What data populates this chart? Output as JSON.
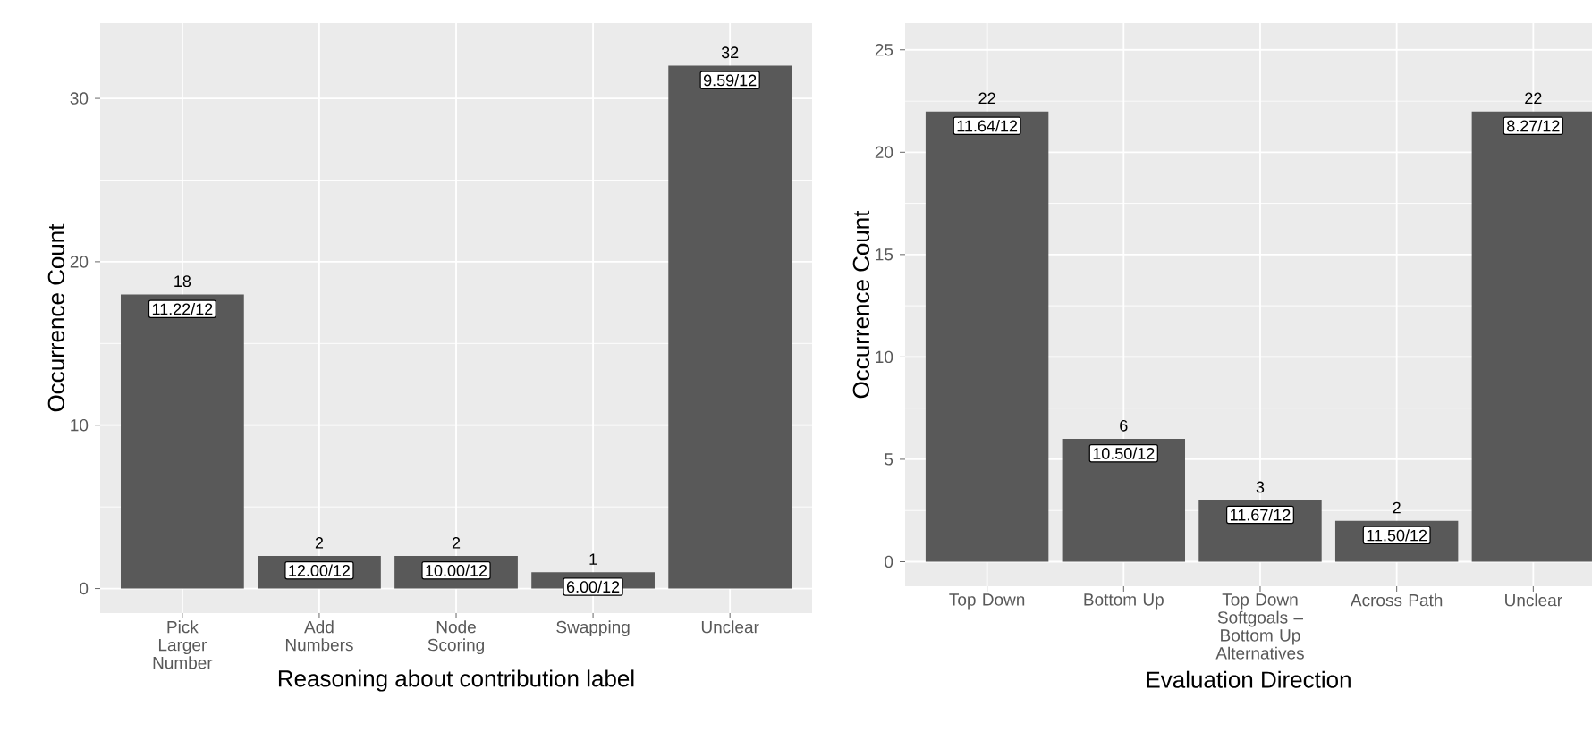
{
  "chart_data": [
    {
      "type": "bar",
      "xlabel": "Reasoning about contribution label",
      "ylabel": "Occurrence Count",
      "categories": [
        "Pick Larger Number",
        "Add Numbers",
        "Node Scoring",
        "Swapping",
        "Unclear"
      ],
      "values": [
        18,
        2,
        2,
        1,
        32
      ],
      "color": "#595959",
      "data_labels": true,
      "ylim": [
        -1.5,
        34.6
      ],
      "yticks": [
        0,
        10,
        20,
        30
      ],
      "grid": true,
      "annotations": [
        {
          "text": "11.22/12",
          "x": "Pick Larger Number",
          "y": 18
        },
        {
          "text": "12.00/12",
          "x": "Add Numbers",
          "y": 2
        },
        {
          "text": "10.00/12",
          "x": "Node Scoring",
          "y": 2
        },
        {
          "text": "6.00/12",
          "x": "Swapping",
          "y": 1
        },
        {
          "text": "9.59/12",
          "x": "Unclear",
          "y": 32
        }
      ]
    },
    {
      "type": "bar",
      "xlabel": "Evaluation Direction",
      "ylabel": "Occurrence Count",
      "categories": [
        "Top Down",
        "Bottom Up",
        "Top Down Softgoals – Bottom Up Alternatives",
        "Across Path",
        "Unclear"
      ],
      "values": [
        22,
        6,
        3,
        2,
        22
      ],
      "color": "#595959",
      "data_labels": true,
      "ylim": [
        -1.2,
        26.3
      ],
      "yticks": [
        0,
        5,
        10,
        15,
        20,
        25
      ],
      "grid": true,
      "annotations": [
        {
          "text": "11.64/12",
          "x": "Top Down",
          "y": 22
        },
        {
          "text": "10.50/12",
          "x": "Bottom Up",
          "y": 6
        },
        {
          "text": "11.67/12",
          "x": "Top Down Softgoals – Bottom Up Alternatives",
          "y": 3
        },
        {
          "text": "11.50/12",
          "x": "Across Path",
          "y": 2
        },
        {
          "text": "8.27/12",
          "x": "Unclear",
          "y": 22
        }
      ]
    }
  ]
}
